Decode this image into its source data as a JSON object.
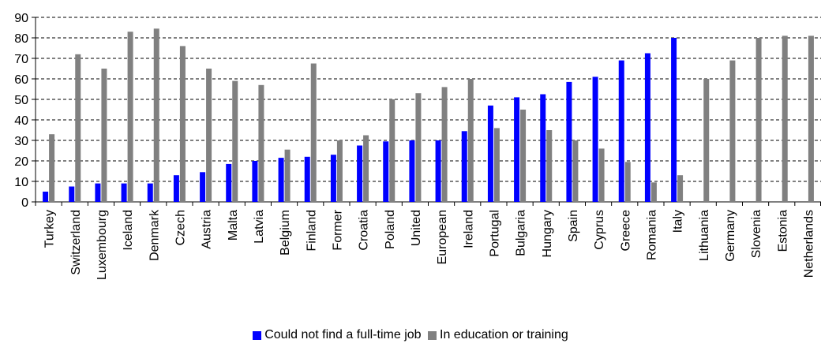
{
  "chart_data": {
    "type": "bar",
    "title": "",
    "xlabel": "",
    "ylabel": "",
    "ylim": [
      0,
      90
    ],
    "yticks": [
      0,
      10,
      20,
      30,
      40,
      50,
      60,
      70,
      80,
      90
    ],
    "grid": "horizontal dashed",
    "legend_position": "bottom",
    "categories": [
      "Turkey",
      "Switzerland",
      "Luxembourg",
      "Iceland",
      "Denmark",
      "Czech",
      "Austria",
      "Malta",
      "Latvia",
      "Belgium",
      "Finland",
      "Former",
      "Croatia",
      "Poland",
      "United",
      "European",
      "Ireland",
      "Portugal",
      "Bulgaria",
      "Hungary",
      "Spain",
      "Cyprus",
      "Greece",
      "Romania",
      "Italy",
      "Lithuania",
      "Germany",
      "Slovenia",
      "Estonia",
      "Netherlands"
    ],
    "series": [
      {
        "name": "Could not find a full-time job",
        "color": "#0000ff",
        "values": [
          5,
          7.5,
          9,
          9,
          9,
          13,
          14.5,
          18.5,
          20,
          21.5,
          22,
          23,
          27.5,
          29.5,
          30,
          30,
          34.5,
          47,
          51,
          52.5,
          58.5,
          61,
          69,
          72.5,
          80,
          null,
          null,
          null,
          null,
          null
        ]
      },
      {
        "name": "In education or training",
        "color": "#808080",
        "values": [
          33,
          72,
          65,
          83,
          84.5,
          76,
          65,
          59,
          57,
          25.5,
          67.5,
          30,
          32.5,
          50,
          53,
          56,
          60,
          36,
          45,
          35,
          30,
          26,
          19.5,
          9.5,
          13,
          60,
          69,
          80,
          81,
          81
        ]
      }
    ]
  }
}
